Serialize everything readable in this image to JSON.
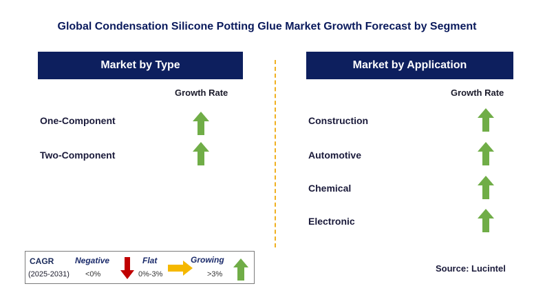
{
  "title": "Global Condensation Silicone Potting Glue Market Growth Forecast by Segment",
  "left_panel": {
    "header": "Market by Type",
    "column_label": "Growth Rate",
    "rows": [
      {
        "label": "One-Component",
        "trend": "growing"
      },
      {
        "label": "Two-Component",
        "trend": "growing"
      }
    ]
  },
  "right_panel": {
    "header": "Market by Application",
    "column_label": "Growth Rate",
    "rows": [
      {
        "label": "Construction",
        "trend": "growing"
      },
      {
        "label": "Automotive",
        "trend": "growing"
      },
      {
        "label": "Chemical",
        "trend": "growing"
      },
      {
        "label": "Electronic",
        "trend": "growing"
      }
    ]
  },
  "legend": {
    "cagr_label": "CAGR",
    "period": "(2025-2031)",
    "negative_label": "Negative",
    "negative_range": "<0%",
    "flat_label": "Flat",
    "flat_range": "0%-3%",
    "growing_label": "Growing",
    "growing_range": ">3%",
    "colors": {
      "negative": "#c00000",
      "flat": "#f5b800",
      "growing": "#70ad47"
    },
    "icons": [
      "down-arrow-icon",
      "right-arrow-icon",
      "up-arrow-icon"
    ]
  },
  "source": "Source: Lucintel",
  "colors": {
    "header_bg": "#0d1f5e",
    "title": "#0a1a5c",
    "divider": "#f0b020",
    "arrow_growing": "#70ad47"
  }
}
